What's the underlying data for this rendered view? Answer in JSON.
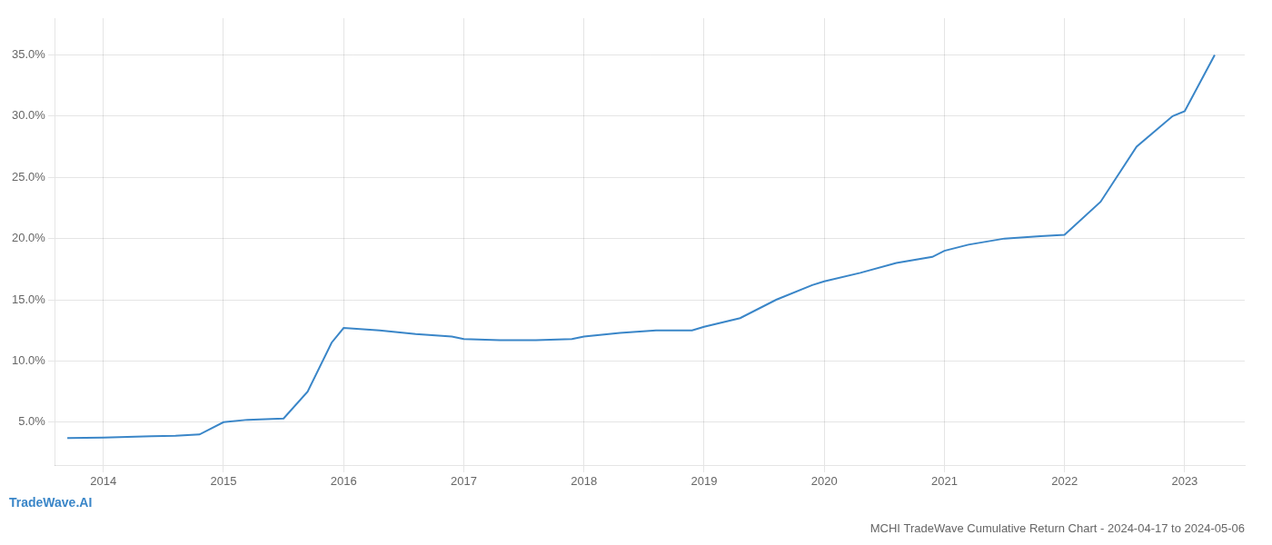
{
  "chart_data": {
    "type": "line",
    "title": "MCHI TradeWave Cumulative Return Chart - 2024-04-17 to 2024-05-06",
    "annotations": [
      {
        "text": "TradeWave.AI",
        "color": "#3a86c8"
      }
    ],
    "color": "#3a86c8",
    "x": [
      2013.7,
      2014.0,
      2014.2,
      2014.4,
      2014.6,
      2014.8,
      2015.0,
      2015.2,
      2015.5,
      2015.7,
      2015.9,
      2016.0,
      2016.3,
      2016.6,
      2016.9,
      2017.0,
      2017.3,
      2017.6,
      2017.9,
      2018.0,
      2018.3,
      2018.6,
      2018.9,
      2019.0,
      2019.3,
      2019.6,
      2019.9,
      2020.0,
      2020.3,
      2020.6,
      2020.9,
      2021.0,
      2021.2,
      2021.5,
      2021.8,
      2022.0,
      2022.3,
      2022.6,
      2022.9,
      2023.0,
      2023.25
    ],
    "values": [
      3.7,
      3.75,
      3.8,
      3.85,
      3.9,
      4.0,
      5.0,
      5.2,
      5.3,
      7.5,
      11.5,
      12.7,
      12.5,
      12.2,
      12.0,
      11.8,
      11.7,
      11.7,
      11.8,
      12.0,
      12.3,
      12.5,
      12.5,
      12.8,
      13.5,
      15.0,
      16.2,
      16.5,
      17.2,
      18.0,
      18.5,
      19.0,
      19.5,
      20.0,
      20.2,
      20.3,
      23.0,
      27.5,
      30.0,
      30.4,
      35.0
    ],
    "xlim": [
      2013.6,
      2023.5
    ],
    "xticks": [
      2014,
      2015,
      2016,
      2017,
      2018,
      2019,
      2020,
      2021,
      2022,
      2023
    ],
    "ylim": [
      1.5,
      38.0
    ],
    "yticks": [
      {
        "value": 5.0,
        "label": "5.0%"
      },
      {
        "value": 10.0,
        "label": "10.0%"
      },
      {
        "value": 15.0,
        "label": "15.0%"
      },
      {
        "value": 20.0,
        "label": "20.0%"
      },
      {
        "value": 25.0,
        "label": "25.0%"
      },
      {
        "value": 30.0,
        "label": "30.0%"
      },
      {
        "value": 35.0,
        "label": "35.0%"
      }
    ],
    "grid": true
  }
}
